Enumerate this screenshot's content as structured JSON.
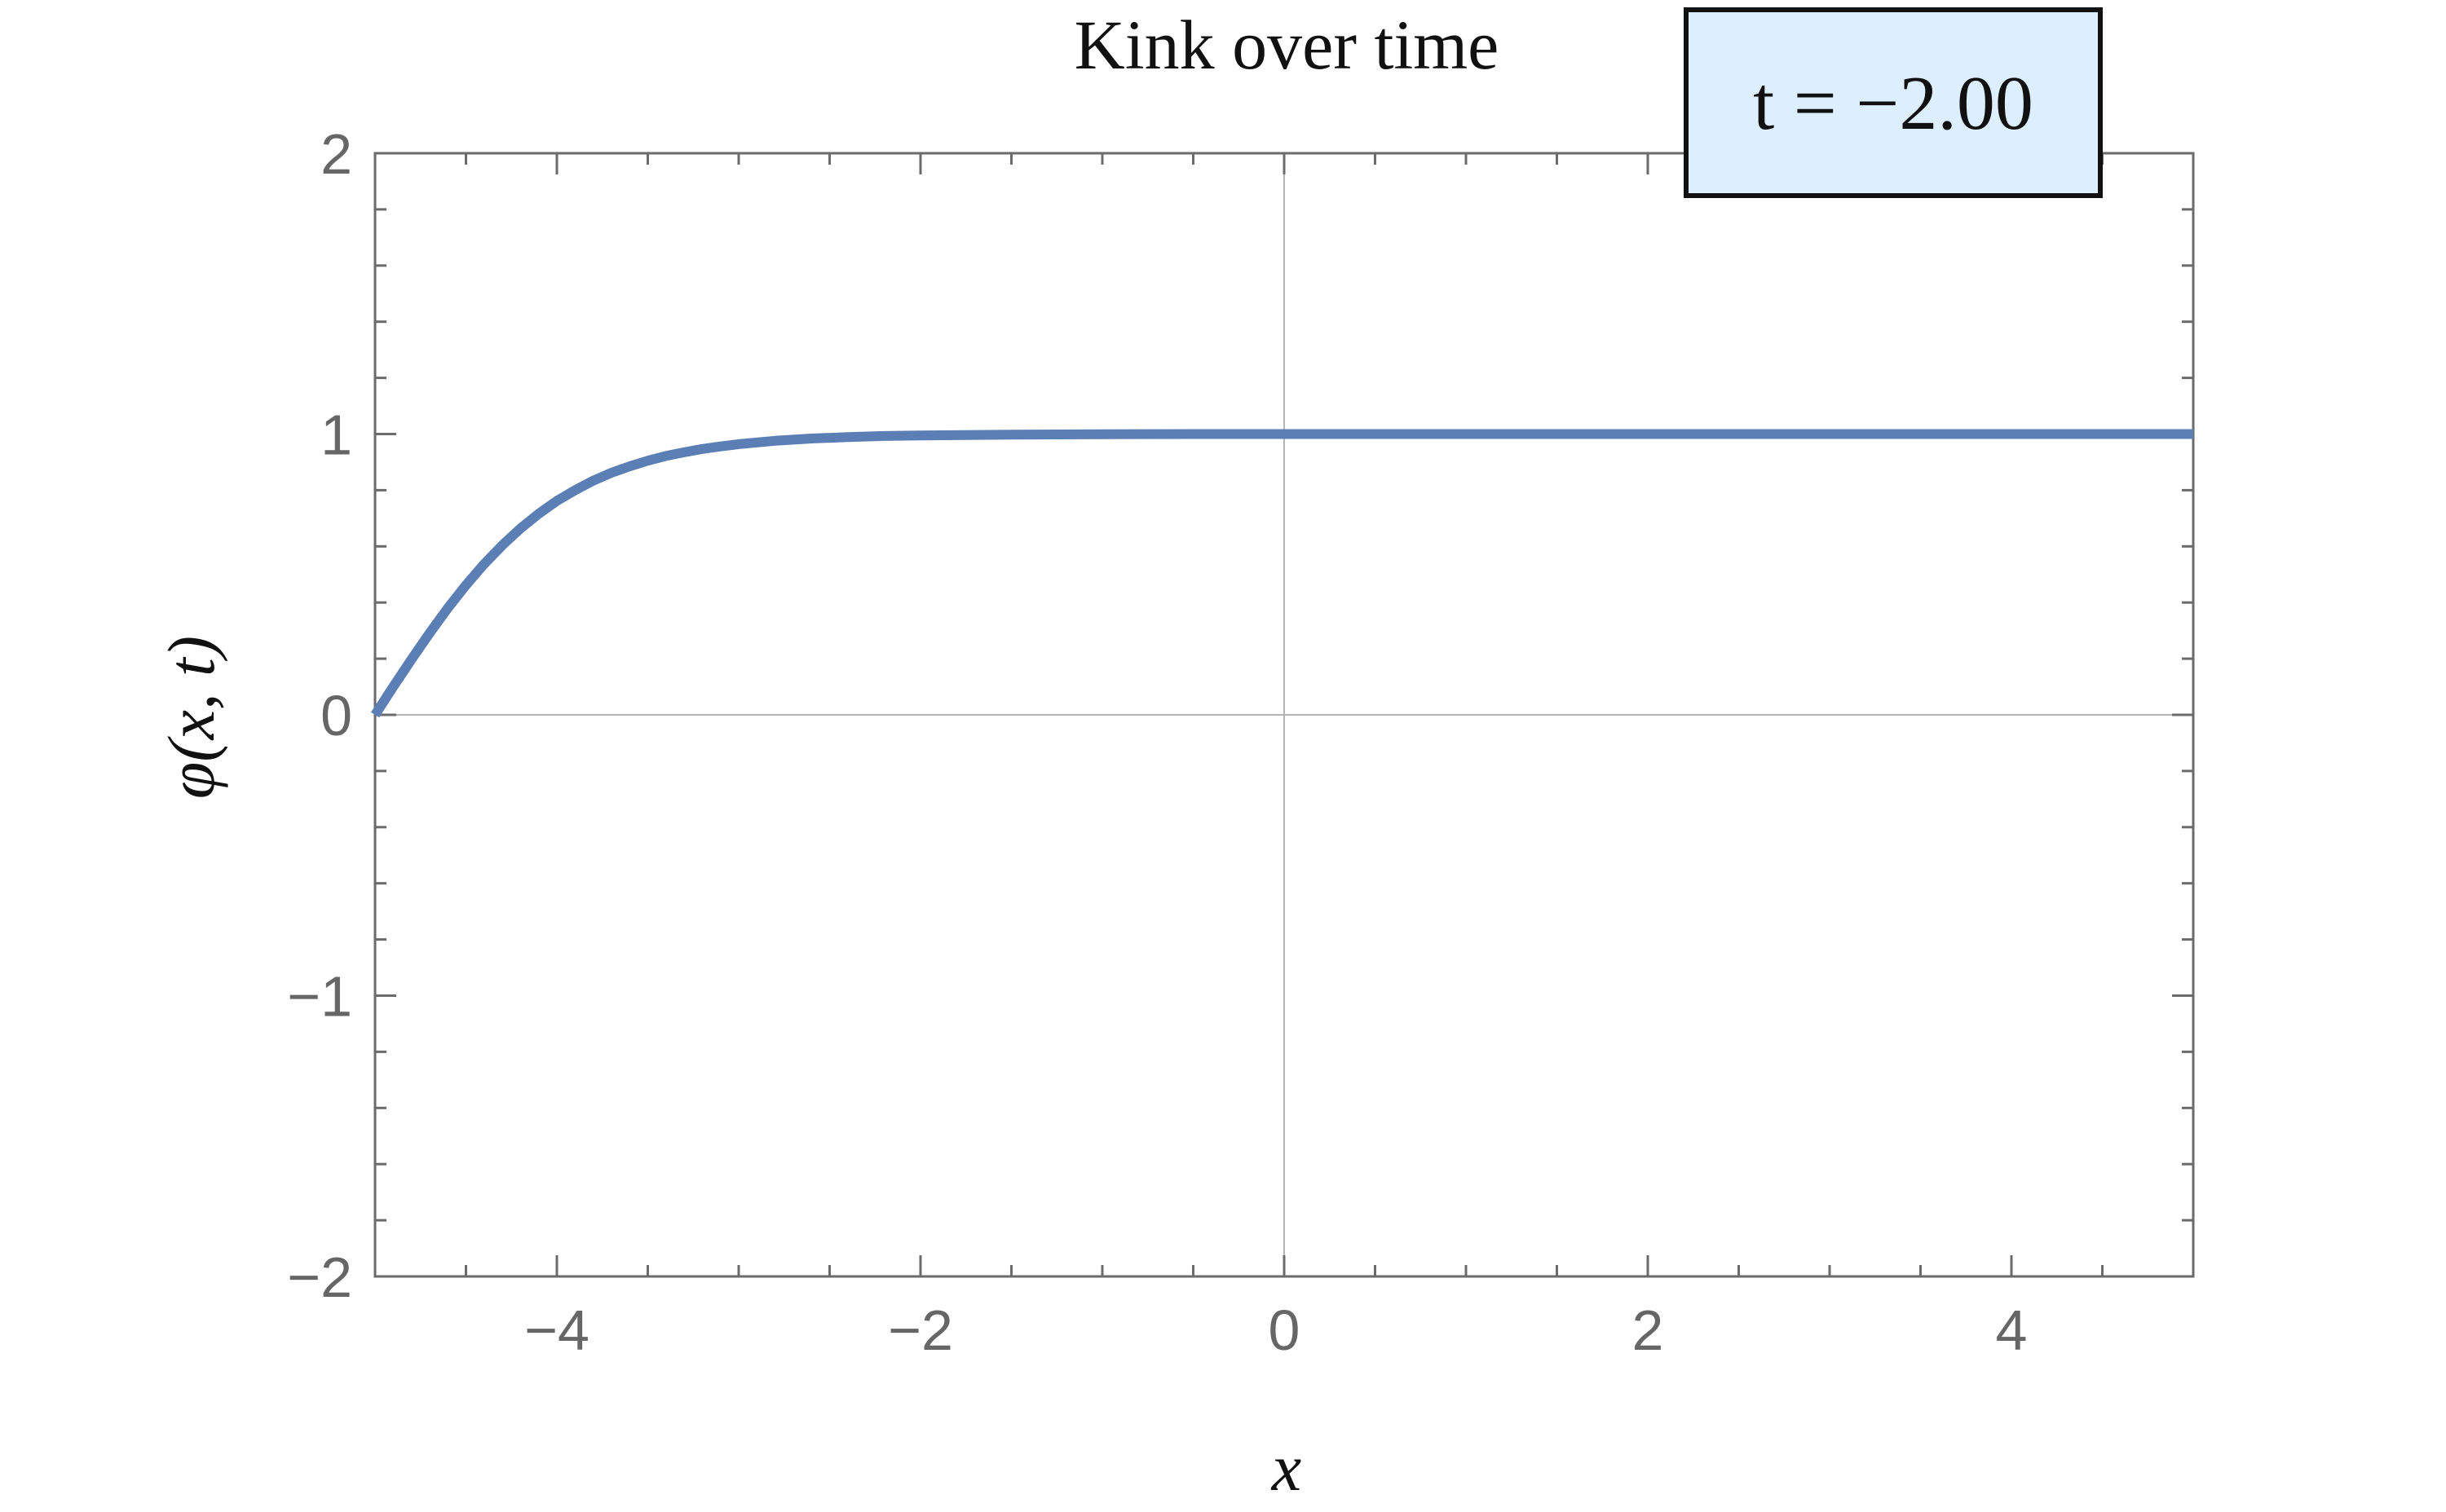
{
  "chart_data": {
    "type": "line",
    "title": "Kink over time",
    "xlabel": "x",
    "ylabel": "φ(x, t)",
    "xlim": [
      -5,
      5
    ],
    "ylim": [
      -2,
      2
    ],
    "x_major_ticks": [
      -4,
      -2,
      0,
      2,
      4
    ],
    "x_tick_labels": [
      "−4",
      "−2",
      "0",
      "2",
      "4"
    ],
    "y_major_ticks": [
      -2,
      -1,
      0,
      1,
      2
    ],
    "y_tick_labels": [
      "−2",
      "−1",
      "0",
      "1",
      "2"
    ],
    "x_minor_step": 0.5,
    "y_minor_step": 0.2,
    "grid": false,
    "zero_axes": true,
    "frame": true,
    "time_label": "t = −2.00",
    "time_value": -2.0,
    "series": [
      {
        "color": "#5b7fb4",
        "x": [
          -5.0,
          -4.9,
          -4.8,
          -4.7,
          -4.6,
          -4.5,
          -4.4,
          -4.3,
          -4.2,
          -4.1,
          -4.0,
          -3.9,
          -3.8,
          -3.7,
          -3.6,
          -3.5,
          -3.4,
          -3.3,
          -3.2,
          -3.1,
          -3.0,
          -2.8,
          -2.6,
          -2.4,
          -2.2,
          -2.0,
          -1.5,
          -1.0,
          -0.5,
          0.0,
          1.0,
          2.0,
          3.0,
          4.0,
          5.0
        ],
        "y": [
          0.0,
          0.1,
          0.197,
          0.291,
          0.38,
          0.462,
          0.537,
          0.604,
          0.664,
          0.716,
          0.762,
          0.8,
          0.834,
          0.862,
          0.885,
          0.905,
          0.922,
          0.935,
          0.947,
          0.956,
          0.964,
          0.976,
          0.984,
          0.989,
          0.993,
          0.995,
          0.998,
          0.999,
          1.0,
          1.0,
          1.0,
          1.0,
          1.0,
          1.0,
          1.0
        ]
      }
    ]
  }
}
